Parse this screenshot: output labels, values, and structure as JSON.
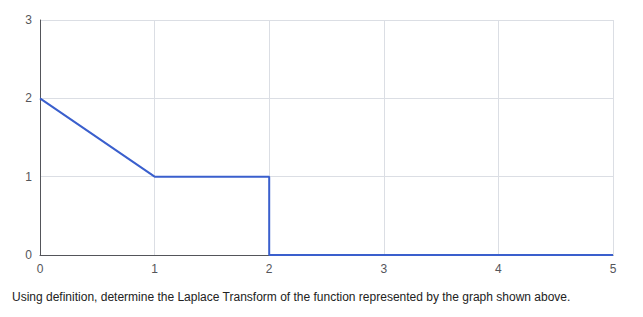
{
  "chart_data": {
    "type": "line",
    "caption": "Using definition, determine the Laplace Transform of the function represented by the graph shown above.",
    "x": [
      0,
      1,
      1,
      2,
      2,
      5
    ],
    "values": [
      2,
      1,
      1,
      1,
      0,
      0
    ],
    "color": "#3a5fcd",
    "xlim": [
      0,
      5
    ],
    "ylim": [
      0,
      3
    ],
    "xticks": [
      0,
      1,
      2,
      3,
      4,
      5
    ],
    "yticks": [
      0,
      1,
      2,
      3
    ],
    "grid": true
  }
}
